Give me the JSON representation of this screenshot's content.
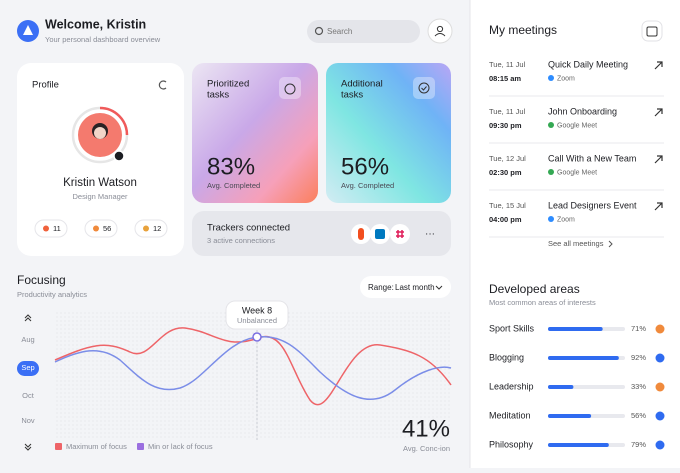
{
  "header": {
    "title": "Welcome, Kristin",
    "subtitle": "Your personal dashboard overview",
    "search_placeholder": "Search"
  },
  "profile": {
    "title": "Profile",
    "name": "Kristin Watson",
    "role": "Design Manager",
    "stats": [
      "11",
      "56",
      "12"
    ]
  },
  "cards": [
    {
      "title_lines": [
        "Prioritized",
        "tasks"
      ],
      "value": "83%",
      "caption": "Avg. Completed"
    },
    {
      "title_lines": [
        "Additional",
        "tasks"
      ],
      "value": "56%",
      "caption": "Avg. Completed"
    }
  ],
  "trackers": {
    "title": "Trackers connected",
    "subtitle": "3 active connections"
  },
  "focusing": {
    "title": "Focusing",
    "subtitle": "Productivity analytics",
    "range_label": "Range:",
    "range_value": "Last month",
    "months": [
      "Aug",
      "Sep",
      "Oct",
      "Nov"
    ],
    "tooltip_title": "Week 8",
    "tooltip_subtitle": "Unbalanced",
    "legend": [
      "Maximum of focus",
      "Min or lack of focus"
    ],
    "stat_value": "41%",
    "stat_caption": "Avg. Conc-ion"
  },
  "meetings": {
    "title": "My meetings",
    "items": [
      {
        "date": "Tue, 11 Jul",
        "time": "08:15 am",
        "title": "Quick Daily Meeting",
        "app": "Zoom"
      },
      {
        "date": "Tue, 11 Jul",
        "time": "09:30 pm",
        "title": "John Onboarding",
        "app": "Google Meet"
      },
      {
        "date": "Tue, 12 Jul",
        "time": "02:30 pm",
        "title": "Call With a New Team",
        "app": "Google Meet"
      },
      {
        "date": "Tue, 15 Jul",
        "time": "04:00 pm",
        "title": "Lead Designers Event",
        "app": "Zoom"
      }
    ],
    "see_all": "See all meetings"
  },
  "areas": {
    "title": "Developed areas",
    "subtitle": "Most common areas of interests",
    "items": [
      {
        "name": "Sport Skills",
        "value": 71,
        "label": "71%"
      },
      {
        "name": "Blogging",
        "value": 92,
        "label": "92%"
      },
      {
        "name": "Leadership",
        "value": 33,
        "label": "33%"
      },
      {
        "name": "Meditation",
        "value": 56,
        "label": "56%"
      },
      {
        "name": "Philosophy",
        "value": 79,
        "label": "79%"
      }
    ]
  }
}
